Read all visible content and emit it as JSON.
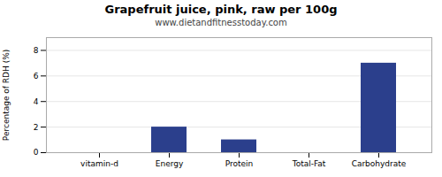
{
  "chart_data": {
    "type": "bar",
    "title": "Grapefruit juice, pink, raw per 100g",
    "subtitle": "www.dietandfitnesstoday.com",
    "categories": [
      "vitamin-d",
      "Energy",
      "Protein",
      "Total-Fat",
      "Carbohydrate"
    ],
    "values": [
      0,
      2,
      1,
      0,
      7
    ],
    "color": "#2b3f8c",
    "ylabel": "Percentage of RDH (%)",
    "ylim": [
      0,
      9
    ],
    "yticks": [
      0,
      2,
      4,
      6,
      8
    ],
    "grid": true
  }
}
